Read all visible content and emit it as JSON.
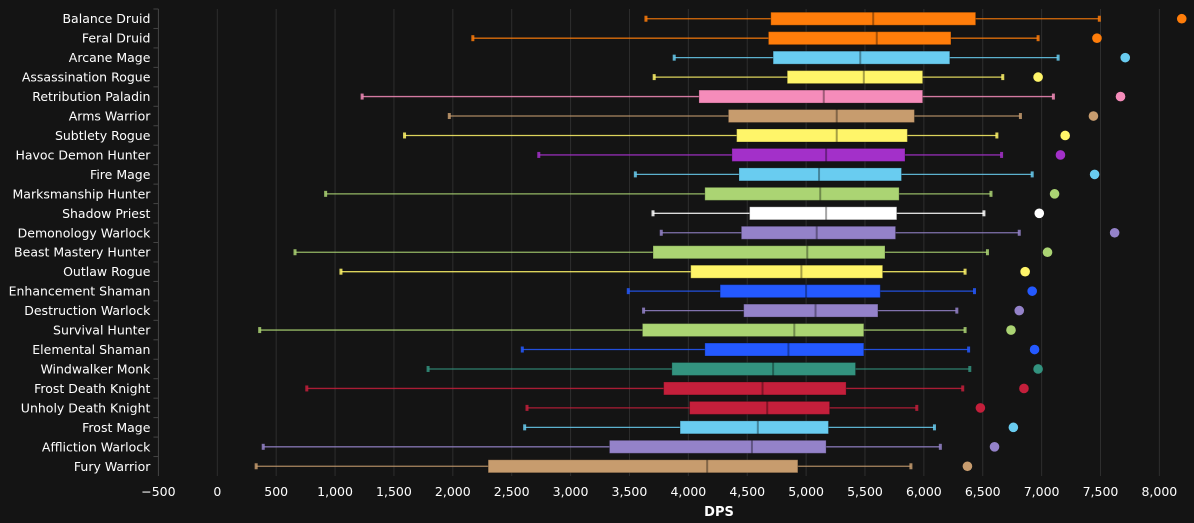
{
  "chart_data": {
    "type": "boxplot",
    "title": "",
    "xlabel": "DPS",
    "ylabel": "",
    "xlim": [
      -500,
      8250
    ],
    "xticks": [
      -500,
      0,
      500,
      1000,
      1500,
      2000,
      2500,
      3000,
      3500,
      4000,
      4500,
      5000,
      5500,
      6000,
      6500,
      7000,
      7500,
      8000
    ],
    "xtick_labels": [
      "−500",
      "0",
      "500",
      "1,000",
      "1,500",
      "2,000",
      "2,500",
      "3,000",
      "3,500",
      "4,000",
      "4,500",
      "5,000",
      "5,500",
      "6,000",
      "6,500",
      "7,000",
      "7,500",
      "8,000"
    ],
    "grid": "vertical",
    "legend": "none",
    "series": [
      {
        "name": "Balance Druid",
        "color": "#FF7D0A",
        "min": 3640,
        "q1": 4700,
        "median": 5570,
        "q3": 6440,
        "max": 7490,
        "outlier": 8190
      },
      {
        "name": "Feral Druid",
        "color": "#FF7D0A",
        "min": 2170,
        "q1": 4680,
        "median": 5600,
        "q3": 6230,
        "max": 6970,
        "outlier": 7470
      },
      {
        "name": "Arcane Mage",
        "color": "#69CCF0",
        "min": 3880,
        "q1": 4720,
        "median": 5460,
        "q3": 6220,
        "max": 7140,
        "outlier": 7710
      },
      {
        "name": "Assassination Rogue",
        "color": "#FFF569",
        "min": 3710,
        "q1": 4840,
        "median": 5490,
        "q3": 5990,
        "max": 6670,
        "outlier": 6970
      },
      {
        "name": "Retribution Paladin",
        "color": "#F58CBA",
        "min": 1230,
        "q1": 4090,
        "median": 5150,
        "q3": 5990,
        "max": 7100,
        "outlier": 7670
      },
      {
        "name": "Arms Warrior",
        "color": "#C79C6E",
        "min": 1970,
        "q1": 4340,
        "median": 5260,
        "q3": 5920,
        "max": 6820,
        "outlier": 7440
      },
      {
        "name": "Subtlety Rogue",
        "color": "#FFF569",
        "min": 1590,
        "q1": 4410,
        "median": 5260,
        "q3": 5860,
        "max": 6620,
        "outlier": 7200
      },
      {
        "name": "Havoc Demon Hunter",
        "color": "#A330C9",
        "min": 2730,
        "q1": 4370,
        "median": 5170,
        "q3": 5840,
        "max": 6660,
        "outlier": 7160
      },
      {
        "name": "Fire Mage",
        "color": "#69CCF0",
        "min": 3550,
        "q1": 4430,
        "median": 5110,
        "q3": 5810,
        "max": 6920,
        "outlier": 7450
      },
      {
        "name": "Marksmanship Hunter",
        "color": "#ABD473",
        "min": 920,
        "q1": 4140,
        "median": 5120,
        "q3": 5790,
        "max": 6570,
        "outlier": 7110
      },
      {
        "name": "Shadow Priest",
        "color": "#FFFFFF",
        "min": 3700,
        "q1": 4520,
        "median": 5170,
        "q3": 5770,
        "max": 6510,
        "outlier": 6980
      },
      {
        "name": "Demonology Warlock",
        "color": "#9482C9",
        "min": 3770,
        "q1": 4450,
        "median": 5090,
        "q3": 5760,
        "max": 6810,
        "outlier": 7620
      },
      {
        "name": "Beast Mastery Hunter",
        "color": "#ABD473",
        "min": 660,
        "q1": 3700,
        "median": 5010,
        "q3": 5670,
        "max": 6540,
        "outlier": 7050
      },
      {
        "name": "Outlaw Rogue",
        "color": "#FFF569",
        "min": 1050,
        "q1": 4020,
        "median": 4960,
        "q3": 5650,
        "max": 6350,
        "outlier": 6860
      },
      {
        "name": "Enhancement Shaman",
        "color": "#2459FF",
        "min": 3490,
        "q1": 4270,
        "median": 5000,
        "q3": 5630,
        "max": 6430,
        "outlier": 6920
      },
      {
        "name": "Destruction Warlock",
        "color": "#9482C9",
        "min": 3620,
        "q1": 4470,
        "median": 5080,
        "q3": 5610,
        "max": 6280,
        "outlier": 6810
      },
      {
        "name": "Survival Hunter",
        "color": "#ABD473",
        "min": 360,
        "q1": 3610,
        "median": 4900,
        "q3": 5490,
        "max": 6350,
        "outlier": 6740
      },
      {
        "name": "Elemental Shaman",
        "color": "#2459FF",
        "min": 2590,
        "q1": 4140,
        "median": 4850,
        "q3": 5490,
        "max": 6380,
        "outlier": 6940
      },
      {
        "name": "Windwalker Monk",
        "color": "#33937F",
        "min": 1790,
        "q1": 3860,
        "median": 4720,
        "q3": 5420,
        "max": 6390,
        "outlier": 6970
      },
      {
        "name": "Frost Death Knight",
        "color": "#C41F3B",
        "min": 760,
        "q1": 3790,
        "median": 4630,
        "q3": 5340,
        "max": 6330,
        "outlier": 6850
      },
      {
        "name": "Unholy Death Knight",
        "color": "#C41F3B",
        "min": 2630,
        "q1": 4010,
        "median": 4670,
        "q3": 5200,
        "max": 5940,
        "outlier": 6480
      },
      {
        "name": "Frost Mage",
        "color": "#69CCF0",
        "min": 2610,
        "q1": 3930,
        "median": 4590,
        "q3": 5190,
        "max": 6090,
        "outlier": 6760
      },
      {
        "name": "Affliction Warlock",
        "color": "#9482C9",
        "min": 390,
        "q1": 3330,
        "median": 4540,
        "q3": 5170,
        "max": 6140,
        "outlier": 6600
      },
      {
        "name": "Fury Warrior",
        "color": "#C79C6E",
        "min": 330,
        "q1": 2300,
        "median": 4160,
        "q3": 4930,
        "max": 5890,
        "outlier": 6370
      }
    ]
  },
  "style": {
    "background": "#141414",
    "grid_color": "#2e2e2e",
    "axis_color": "#444444",
    "text_color": "#ffffff"
  }
}
